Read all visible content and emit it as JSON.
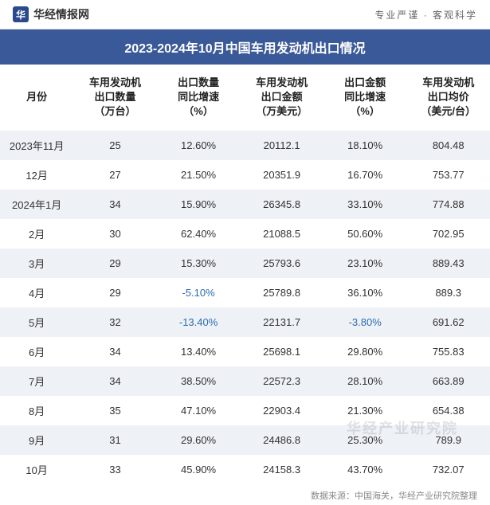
{
  "header": {
    "logo_glyph": "华",
    "logo_text": "华经情报网",
    "tagline": "专业严谨 · 客观科学"
  },
  "title": "2023-2024年10月中国车用发动机出口情况",
  "table": {
    "columns": [
      "月份",
      "车用发动机\n出口数量\n（万台）",
      "出口数量\n同比增速\n（%）",
      "车用发动机\n出口金额\n（万美元）",
      "出口金额\n同比增速\n（%）",
      "车用发动机\n出口均价\n（美元/台）"
    ],
    "rows": [
      {
        "month": "2023年11月",
        "qty": "25",
        "qty_growth": "12.60%",
        "qty_neg": false,
        "amount": "20112.1",
        "amount_growth": "18.10%",
        "amount_neg": false,
        "avg": "804.48"
      },
      {
        "month": "12月",
        "qty": "27",
        "qty_growth": "21.50%",
        "qty_neg": false,
        "amount": "20351.9",
        "amount_growth": "16.70%",
        "amount_neg": false,
        "avg": "753.77"
      },
      {
        "month": "2024年1月",
        "qty": "34",
        "qty_growth": "15.90%",
        "qty_neg": false,
        "amount": "26345.8",
        "amount_growth": "33.10%",
        "amount_neg": false,
        "avg": "774.88"
      },
      {
        "month": "2月",
        "qty": "30",
        "qty_growth": "62.40%",
        "qty_neg": false,
        "amount": "21088.5",
        "amount_growth": "50.60%",
        "amount_neg": false,
        "avg": "702.95"
      },
      {
        "month": "3月",
        "qty": "29",
        "qty_growth": "15.30%",
        "qty_neg": false,
        "amount": "25793.6",
        "amount_growth": "23.10%",
        "amount_neg": false,
        "avg": "889.43"
      },
      {
        "month": "4月",
        "qty": "29",
        "qty_growth": "-5.10%",
        "qty_neg": true,
        "amount": "25789.8",
        "amount_growth": "36.10%",
        "amount_neg": false,
        "avg": "889.3"
      },
      {
        "month": "5月",
        "qty": "32",
        "qty_growth": "-13.40%",
        "qty_neg": true,
        "amount": "22131.7",
        "amount_growth": "-3.80%",
        "amount_neg": true,
        "avg": "691.62"
      },
      {
        "month": "6月",
        "qty": "34",
        "qty_growth": "13.40%",
        "qty_neg": false,
        "amount": "25698.1",
        "amount_growth": "29.80%",
        "amount_neg": false,
        "avg": "755.83"
      },
      {
        "month": "7月",
        "qty": "34",
        "qty_growth": "38.50%",
        "qty_neg": false,
        "amount": "22572.3",
        "amount_growth": "28.10%",
        "amount_neg": false,
        "avg": "663.89"
      },
      {
        "month": "8月",
        "qty": "35",
        "qty_growth": "47.10%",
        "qty_neg": false,
        "amount": "22903.4",
        "amount_growth": "21.30%",
        "amount_neg": false,
        "avg": "654.38"
      },
      {
        "month": "9月",
        "qty": "31",
        "qty_growth": "29.60%",
        "qty_neg": false,
        "amount": "24486.8",
        "amount_growth": "25.30%",
        "amount_neg": false,
        "avg": "789.9"
      },
      {
        "month": "10月",
        "qty": "33",
        "qty_growth": "45.90%",
        "qty_neg": false,
        "amount": "24158.3",
        "amount_growth": "43.70%",
        "amount_neg": false,
        "avg": "732.07"
      }
    ]
  },
  "footer": {
    "source": "数据来源：中国海关，华经产业研究院整理"
  },
  "watermark": "华经产业研究院",
  "styling": {
    "title_bg": "#3a5998",
    "title_color": "#ffffff",
    "row_odd_bg": "#eef1f6",
    "row_even_bg": "#ffffff",
    "negative_color": "#2b6cb0",
    "text_color": "#333333",
    "header_fontsize": 13,
    "cell_fontsize": 13,
    "title_fontsize": 16
  }
}
